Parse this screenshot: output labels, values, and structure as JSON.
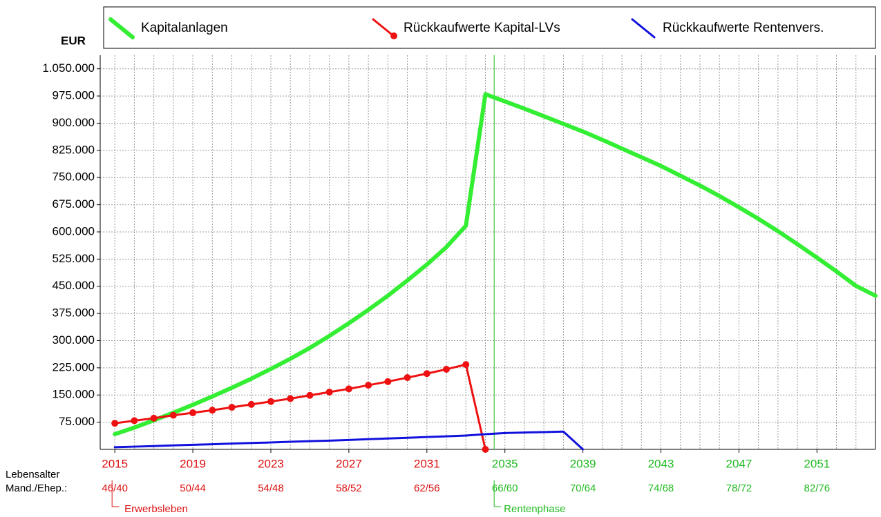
{
  "chart_data": {
    "type": "line",
    "y_unit": "EUR",
    "x": [
      2015,
      2016,
      2017,
      2018,
      2019,
      2020,
      2021,
      2022,
      2023,
      2024,
      2025,
      2026,
      2027,
      2028,
      2029,
      2030,
      2031,
      2032,
      2033,
      2034,
      2035,
      2036,
      2037,
      2038,
      2039,
      2040,
      2041,
      2042,
      2043,
      2044,
      2045,
      2046,
      2047,
      2048,
      2049,
      2050,
      2051,
      2052,
      2053,
      2054
    ],
    "series": [
      {
        "name": "Kapitalanlagen",
        "color": "#33ee33",
        "width": 6,
        "dots": false,
        "values": [
          42000,
          60000,
          80000,
          101000,
          123000,
          146000,
          170000,
          195000,
          222000,
          250000,
          280000,
          313000,
          348000,
          385000,
          424000,
          466000,
          510000,
          558000,
          617000,
          980000,
          960000,
          940000,
          919000,
          898000,
          877000,
          854000,
          830000,
          806000,
          782000,
          755000,
          728000,
          699000,
          668000,
          636000,
          602000,
          566000,
          529000,
          491000,
          451000,
          424000
        ]
      },
      {
        "name": "Rückkaufwerte Kapital-LVs",
        "color": "#ee1111",
        "width": 3,
        "dots": true,
        "values": [
          72000,
          79000,
          86000,
          94000,
          101000,
          108000,
          116000,
          124000,
          132000,
          140000,
          149000,
          158000,
          167000,
          177000,
          187000,
          198000,
          209000,
          221000,
          234000,
          0,
          null,
          null,
          null,
          null,
          null,
          null,
          null,
          null,
          null,
          null,
          null,
          null,
          null,
          null,
          null,
          null,
          null,
          null,
          null,
          null
        ]
      },
      {
        "name": "Rückkaufwerte Rentenvers.",
        "color": "#1111dd",
        "width": 3,
        "dots": false,
        "values": [
          6000,
          7500,
          9000,
          11000,
          12500,
          14000,
          16000,
          17500,
          19000,
          21000,
          22500,
          24000,
          26000,
          28000,
          30000,
          32000,
          34000,
          36000,
          38000,
          42000,
          45000,
          46500,
          47500,
          49000,
          0,
          null,
          null,
          null,
          null,
          null,
          null,
          null,
          null,
          null,
          null,
          null,
          null,
          null,
          null,
          null
        ]
      }
    ],
    "xlim": [
      2014.25,
      2054
    ],
    "xticks": [
      2015,
      2019,
      2023,
      2027,
      2031,
      2035,
      2039,
      2043,
      2047,
      2051
    ],
    "age_labels": [
      "46/40",
      "50/44",
      "54/48",
      "58/52",
      "62/56",
      "66/60",
      "70/64",
      "74/68",
      "78/72",
      "82/76"
    ],
    "ylim": [
      0,
      1087500
    ],
    "yticks": [
      {
        "value": 75000,
        "label": "75.000"
      },
      {
        "value": 150000,
        "label": "150.000"
      },
      {
        "value": 225000,
        "label": "225.000"
      },
      {
        "value": 300000,
        "label": "300.000"
      },
      {
        "value": 375000,
        "label": "375.000"
      },
      {
        "value": 450000,
        "label": "450.000"
      },
      {
        "value": 525000,
        "label": "525.000"
      },
      {
        "value": 600000,
        "label": "600.000"
      },
      {
        "value": 675000,
        "label": "675.000"
      },
      {
        "value": 750000,
        "label": "750.000"
      },
      {
        "value": 825000,
        "label": "825.000"
      },
      {
        "value": 900000,
        "label": "900.000"
      },
      {
        "value": 975000,
        "label": "975.000"
      },
      {
        "value": 1050000,
        "label": "1.050.000"
      }
    ],
    "grid": true,
    "phase_line": 2034.45,
    "pre_color": "#dd1111",
    "post_color": "#22bb22",
    "annotations": {
      "age_title": "Lebensalter",
      "age_sub": "Mand./Ehep.:",
      "pre": "Erwerbsleben",
      "post": "Rentenphase"
    }
  }
}
